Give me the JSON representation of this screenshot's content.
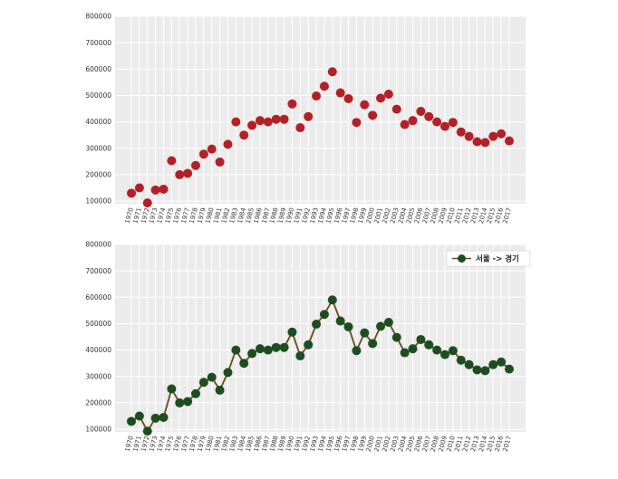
{
  "chart_data": [
    {
      "type": "scatter",
      "title": "",
      "xlabel": "",
      "ylabel": "",
      "ylim": [
        90000,
        800000
      ],
      "grid": true,
      "yticks": [
        "800000",
        "700000",
        "600000",
        "500000",
        "400000",
        "300000",
        "200000",
        "100000"
      ],
      "ytick_values": [
        800000,
        700000,
        600000,
        500000,
        400000,
        300000,
        200000,
        100000
      ],
      "categories": [
        "1970",
        "1971",
        "1972",
        "1973",
        "1974",
        "1975",
        "1976",
        "1977",
        "1978",
        "1979",
        "1980",
        "1981",
        "1982",
        "1983",
        "1984",
        "1985",
        "1986",
        "1987",
        "1988",
        "1989",
        "1990",
        "1991",
        "1992",
        "1993",
        "1994",
        "1995",
        "1996",
        "1997",
        "1998",
        "1999",
        "2000",
        "2001",
        "2002",
        "2003",
        "2004",
        "2005",
        "2006",
        "2007",
        "2008",
        "2009",
        "2010",
        "2011",
        "2012",
        "2013",
        "2014",
        "2015",
        "2016",
        "2017"
      ],
      "values": [
        130000,
        150000,
        93000,
        142000,
        145000,
        253000,
        200000,
        205000,
        235000,
        278000,
        297000,
        248000,
        315000,
        400000,
        350000,
        387000,
        405000,
        400000,
        410000,
        410000,
        468000,
        378000,
        420000,
        498000,
        535000,
        590000,
        510000,
        488000,
        398000,
        465000,
        425000,
        490000,
        505000,
        448000,
        390000,
        405000,
        440000,
        420000,
        400000,
        383000,
        398000,
        362000,
        345000,
        325000,
        322000,
        345000,
        355000,
        328000
      ],
      "series_name": "서울 -> 경기",
      "marker_color": "#b22028"
    },
    {
      "type": "line",
      "title": "",
      "xlabel": "",
      "ylabel": "",
      "ylim": [
        90000,
        800000
      ],
      "grid": true,
      "yticks": [
        "800000",
        "700000",
        "600000",
        "500000",
        "400000",
        "300000",
        "200000",
        "100000"
      ],
      "ytick_values": [
        800000,
        700000,
        600000,
        500000,
        400000,
        300000,
        200000,
        100000
      ],
      "categories": [
        "1970",
        "1971",
        "1972",
        "1973",
        "1974",
        "1975",
        "1976",
        "1977",
        "1978",
        "1979",
        "1980",
        "1981",
        "1982",
        "1983",
        "1984",
        "1985",
        "1986",
        "1987",
        "1988",
        "1989",
        "1990",
        "1991",
        "1992",
        "1993",
        "1994",
        "1995",
        "1996",
        "1997",
        "1998",
        "1999",
        "2000",
        "2001",
        "2002",
        "2003",
        "2004",
        "2005",
        "2006",
        "2007",
        "2008",
        "2009",
        "2010",
        "2011",
        "2012",
        "2013",
        "2014",
        "2015",
        "2016",
        "2017"
      ],
      "series": [
        {
          "name": "서울 -> 경기",
          "values": [
            130000,
            150000,
            93000,
            142000,
            145000,
            253000,
            200000,
            205000,
            235000,
            278000,
            297000,
            248000,
            315000,
            400000,
            350000,
            387000,
            405000,
            400000,
            410000,
            410000,
            468000,
            378000,
            420000,
            498000,
            535000,
            590000,
            510000,
            488000,
            398000,
            465000,
            425000,
            490000,
            505000,
            448000,
            390000,
            405000,
            440000,
            420000,
            400000,
            383000,
            398000,
            362000,
            345000,
            325000,
            322000,
            345000,
            355000,
            328000
          ]
        }
      ],
      "legend": {
        "position": "top-right",
        "label": "서울 -> 경기"
      },
      "line_color": "#6b4a1c",
      "marker_color": "#1f4d22"
    }
  ]
}
